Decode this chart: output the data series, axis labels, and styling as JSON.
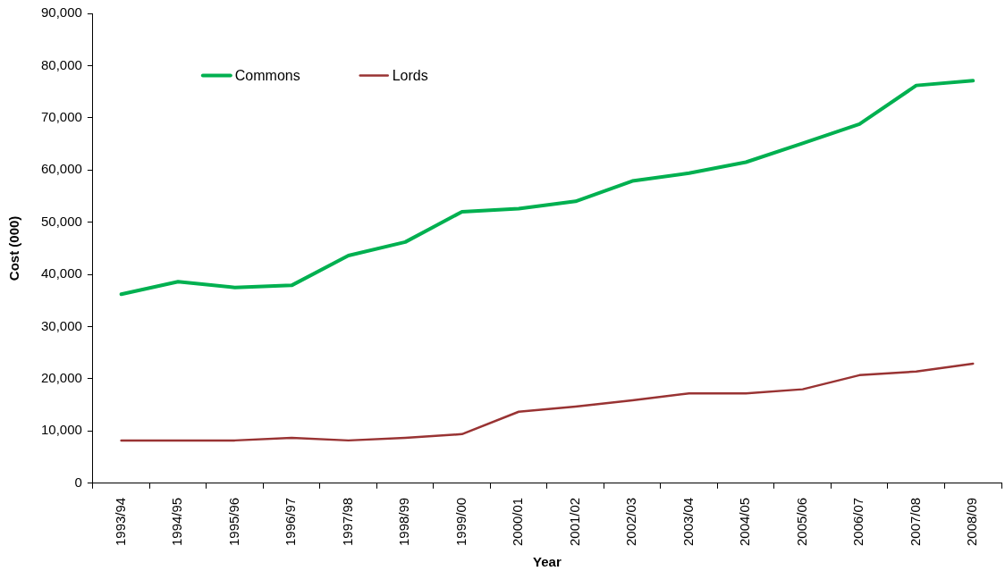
{
  "chart_data": {
    "type": "line",
    "xlabel": "Year",
    "ylabel": "Cost (000)",
    "categories": [
      "1993/94",
      "1994/95",
      "1995/96",
      "1996/97",
      "1997/98",
      "1998/99",
      "1999/00",
      "2000/01",
      "2001/02",
      "2002/03",
      "2003/04",
      "2004/05",
      "2005/06",
      "2006/07",
      "2007/08",
      "2008/09"
    ],
    "series": [
      {
        "name": "Commons",
        "color": "#00b050",
        "values": [
          36200,
          38600,
          37500,
          37900,
          43600,
          46200,
          52000,
          52600,
          54000,
          57900,
          59400,
          61500,
          65100,
          68800,
          76200,
          77100
        ]
      },
      {
        "name": "Lords",
        "color": "#993333",
        "values": [
          8200,
          8200,
          8200,
          8700,
          8200,
          8700,
          9400,
          13700,
          14700,
          15900,
          17200,
          17200,
          18000,
          20700,
          21400,
          22900
        ]
      }
    ],
    "ylim": [
      0,
      90000
    ],
    "yticks": [
      0,
      {
        "value": 10000,
        "label": "10,000"
      },
      {
        "value": 20000,
        "label": "20,000"
      },
      {
        "value": 30000,
        "label": "30,000"
      },
      {
        "value": 40000,
        "label": "40,000"
      },
      {
        "value": 50000,
        "label": "50,000"
      },
      {
        "value": 60000,
        "label": "60,000"
      },
      {
        "value": 70000,
        "label": "70,000"
      },
      {
        "value": 80000,
        "label": "80,000"
      },
      {
        "value": 90000,
        "label": "90,000"
      }
    ],
    "legend": "top left",
    "marker": "none",
    "line_style": "solid"
  }
}
